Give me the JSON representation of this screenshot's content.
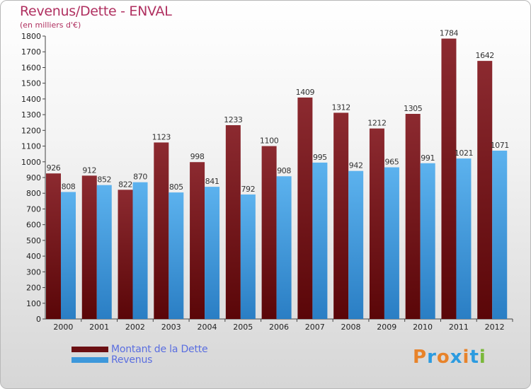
{
  "title": "Revenus/Dette - ENVAL",
  "subtitle": "(en milliers d'€)",
  "logo_text": "Proxiti",
  "colors": {
    "dette": "#7a1a22",
    "revenus": "#3d98db",
    "title": "#b03060",
    "legend_text": "#5a6ee0"
  },
  "legend": [
    {
      "label": "Montant de la Dette",
      "color": "#6b0f12"
    },
    {
      "label": "Revenus",
      "color": "#3d98db"
    }
  ],
  "chart_data": {
    "type": "bar",
    "title": "Revenus/Dette - ENVAL",
    "subtitle": "(en milliers d'€)",
    "xlabel": "",
    "ylabel": "",
    "categories": [
      "2000",
      "2001",
      "2002",
      "2003",
      "2004",
      "2005",
      "2006",
      "2007",
      "2008",
      "2009",
      "2010",
      "2011",
      "2012"
    ],
    "series": [
      {
        "name": "Montant de la Dette",
        "values": [
          926,
          912,
          822,
          1123,
          998,
          1233,
          1100,
          1409,
          1312,
          1212,
          1305,
          1784,
          1642
        ]
      },
      {
        "name": "Revenus",
        "values": [
          808,
          852,
          870,
          805,
          841,
          792,
          908,
          995,
          942,
          965,
          991,
          1021,
          1071
        ]
      }
    ],
    "ylim": [
      0,
      1800
    ],
    "yticks": [
      0,
      100,
      200,
      300,
      400,
      500,
      600,
      700,
      800,
      900,
      1000,
      1100,
      1200,
      1300,
      1400,
      1500,
      1600,
      1700,
      1800
    ],
    "grid": false,
    "legend_position": "bottom-left"
  }
}
